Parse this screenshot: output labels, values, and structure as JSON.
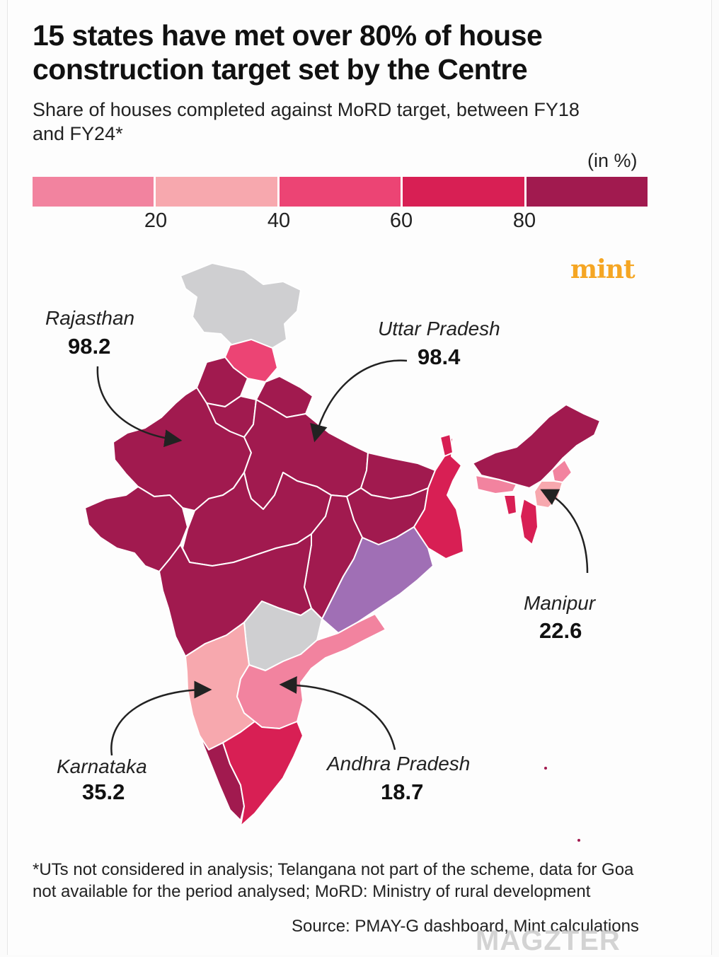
{
  "title": "15 states have met over 80% of house construction target set by the Centre",
  "subtitle": "Share of houses completed against MoRD target, between FY18 and FY24*",
  "unit": "(in %)",
  "legend": {
    "colors": [
      "#f2839f",
      "#f7a8ae",
      "#ec4474",
      "#d81f54",
      "#a11a4f"
    ],
    "ticks": [
      "20",
      "40",
      "60",
      "80"
    ]
  },
  "brand": "mint",
  "colors": {
    "above_80": "#a11a4f",
    "band_60_80": "#d81f54",
    "band_40_60": "#ec4474",
    "band_20_40": "#f7a8ae",
    "below_20": "#f2839f",
    "not_considered": "#cfcfd1",
    "odisha": "#a06fb5"
  },
  "callouts": [
    {
      "state": "Rajasthan",
      "value": "98.2"
    },
    {
      "state": "Uttar Pradesh",
      "value": "98.4"
    },
    {
      "state": "Manipur",
      "value": "22.6"
    },
    {
      "state": "Karnataka",
      "value": "35.2"
    },
    {
      "state": "Andhra Pradesh",
      "value": "18.7"
    }
  ],
  "footnote": "*UTs not considered in analysis; Telangana not part of the scheme, data for Goa not available for the period analysed; MoRD: Ministry of rural development",
  "source": "Source: PMAY-G dashboard, Mint calculations",
  "watermark": "MAGZTER"
}
